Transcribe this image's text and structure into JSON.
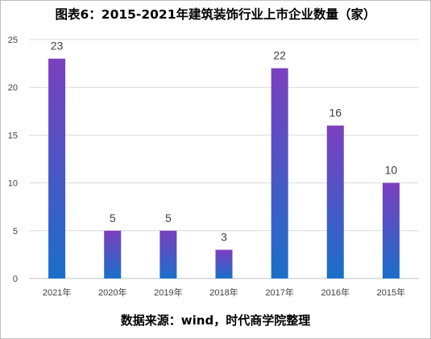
{
  "chart_data": {
    "type": "bar",
    "title": "图表6：2015-2021年建筑装饰行业上市企业数量（家）",
    "source": "数据来源：wind，时代商学院整理",
    "categories": [
      "2021年",
      "2020年",
      "2019年",
      "2018年",
      "2017年",
      "2016年",
      "2015年"
    ],
    "values": [
      23,
      5,
      5,
      3,
      22,
      16,
      10
    ],
    "ylim": [
      0,
      25
    ],
    "yticks": [
      0,
      5,
      10,
      15,
      20,
      25
    ],
    "grid": true,
    "legend": "none",
    "colors": {
      "bar_top": "#7b3fbf",
      "bar_bottom": "#1a6fc9",
      "grid": "#d9d9d9",
      "axis": "#bfbfbf"
    }
  }
}
